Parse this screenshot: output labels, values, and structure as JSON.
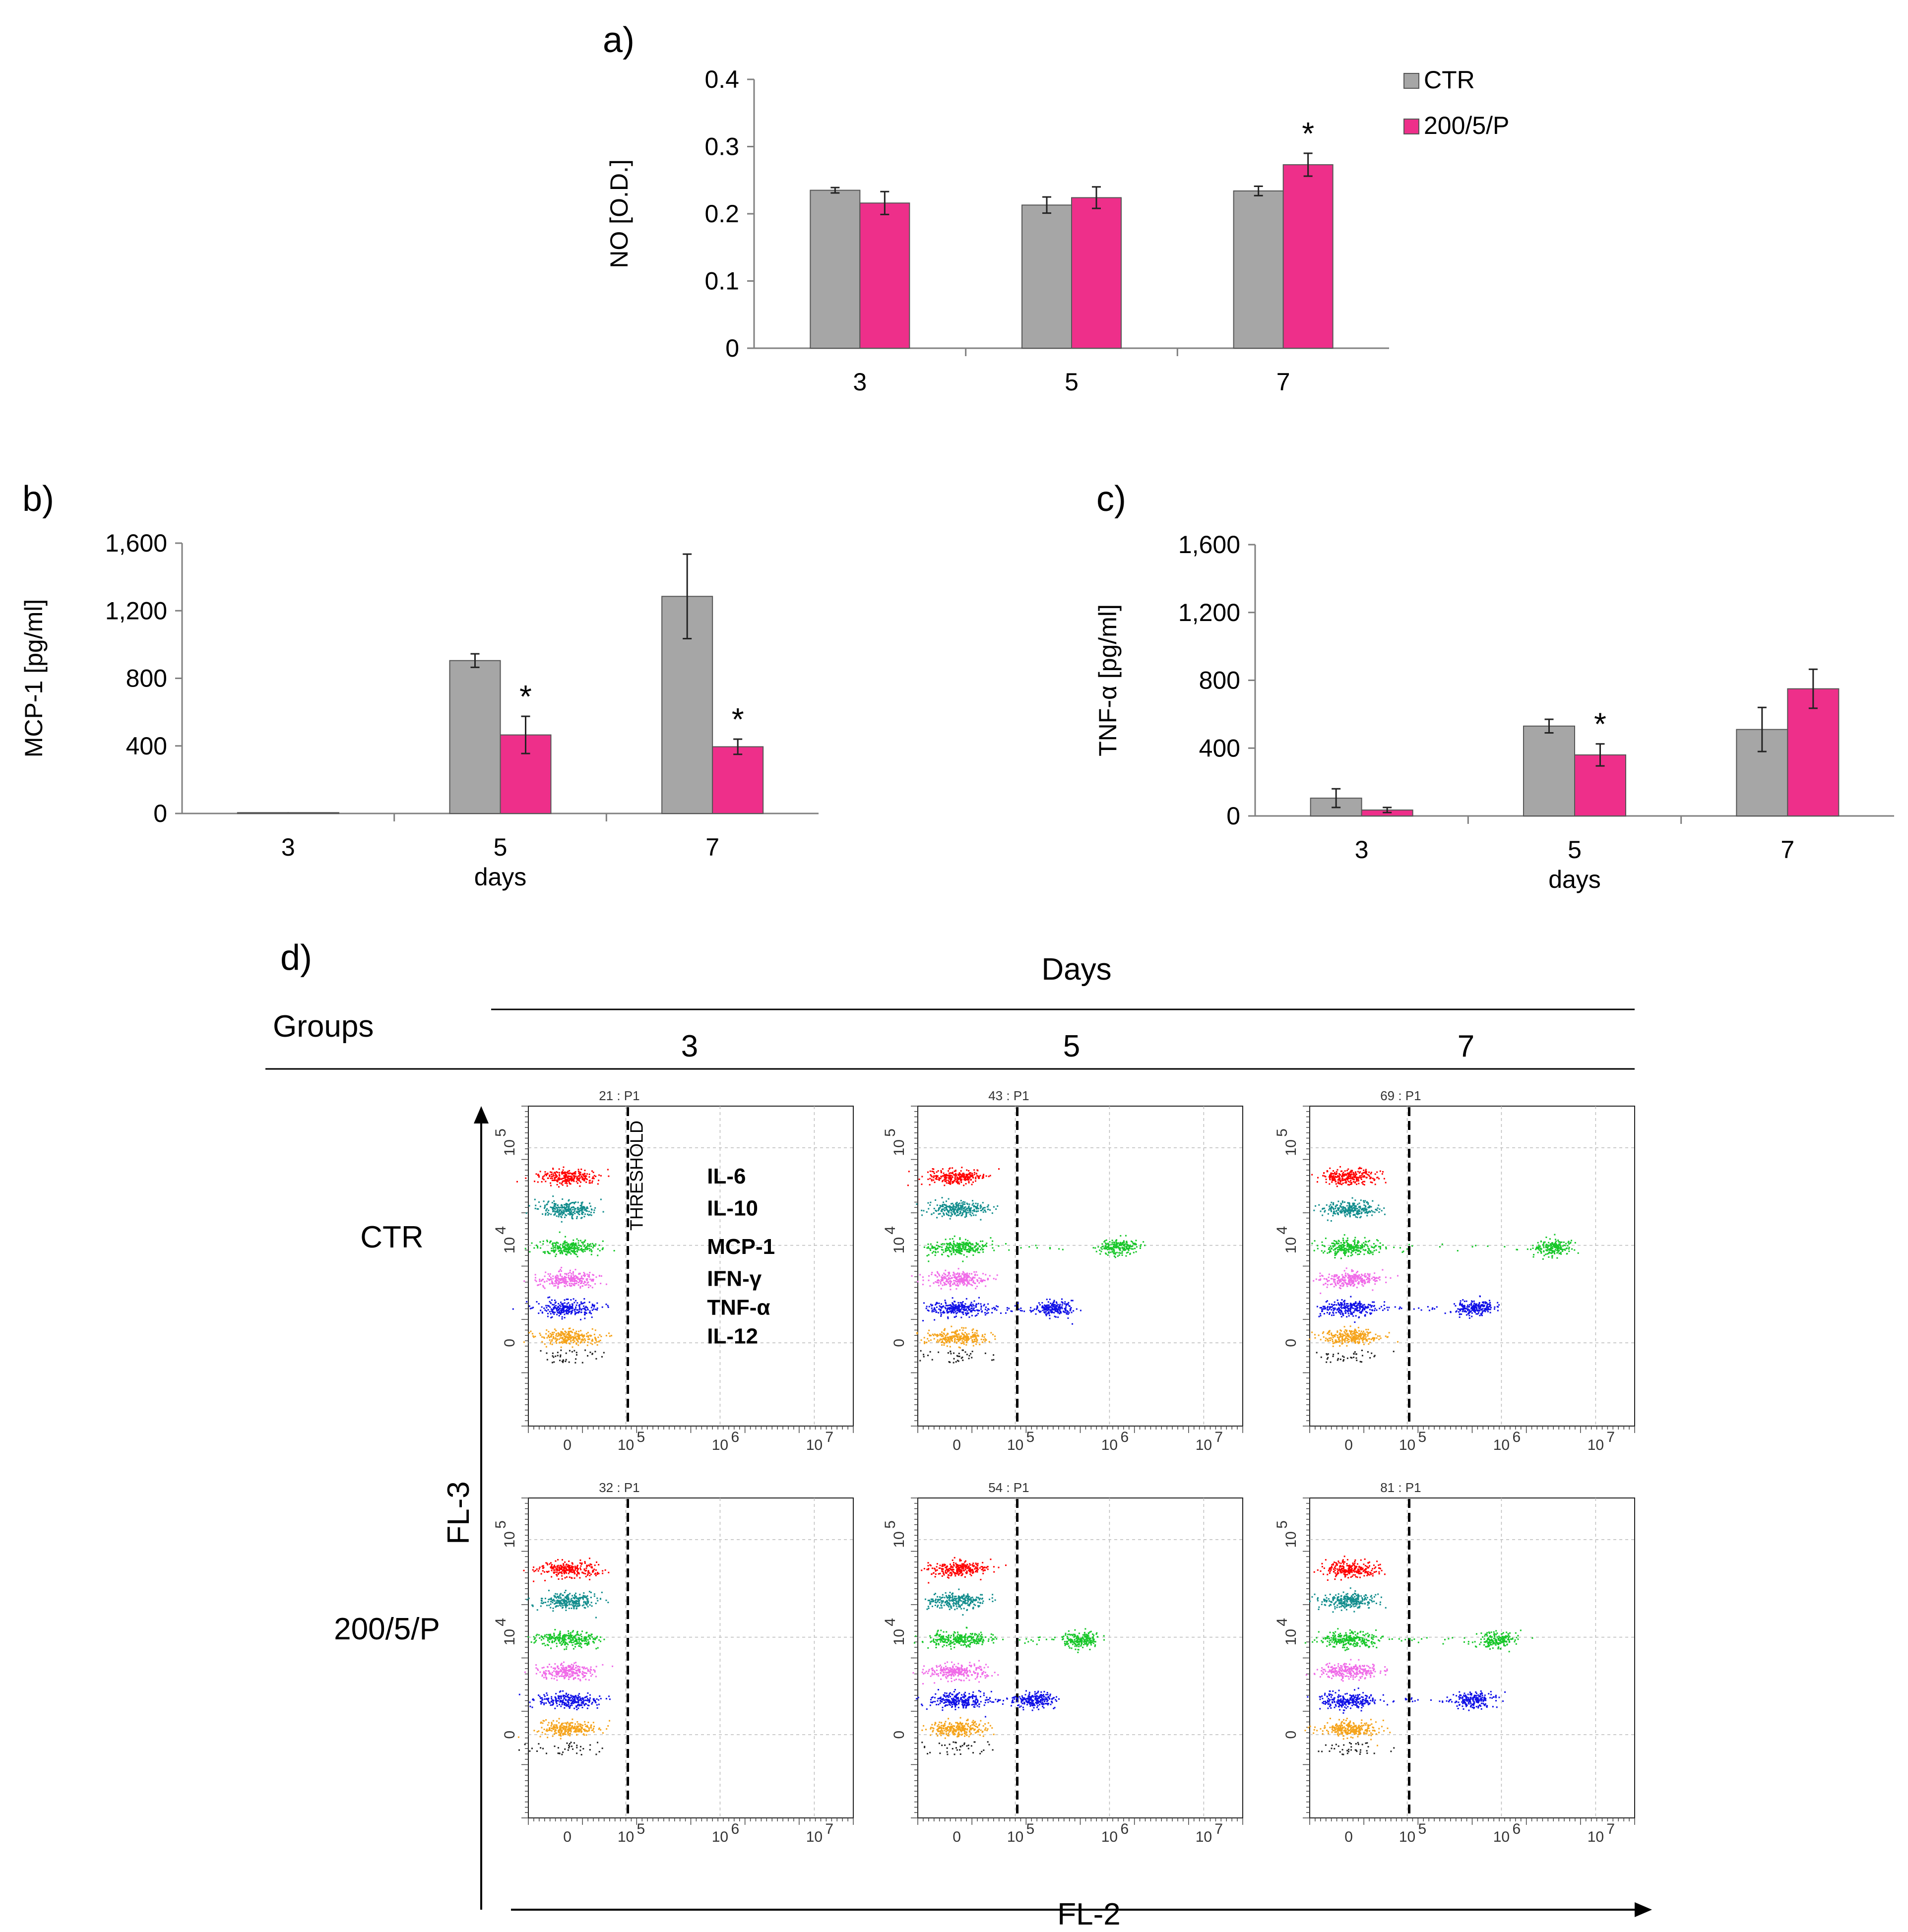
{
  "colors": {
    "ctr": "#a6a6a6",
    "treated": "#ee2f8a",
    "IL-6": "#ff0000",
    "IL-10": "#138d8d",
    "MCP-1": "#18c72a",
    "IFN-γ": "#f06be8",
    "TNF-α": "#1010e6",
    "IL-12": "#f5a31a"
  },
  "panels": {
    "a": {
      "label": "a)"
    },
    "b": {
      "label": "b)"
    },
    "c": {
      "label": "c)"
    },
    "d": {
      "label": "d)"
    }
  },
  "chart_data": [
    {
      "id": "a",
      "type": "bar",
      "title": "",
      "xlabel": "",
      "ylabel": "NO [O.D.]",
      "categories": [
        "3",
        "5",
        "7"
      ],
      "ylim": [
        0,
        0.4
      ],
      "yticks": [
        "0",
        "0.1",
        "0.2",
        "0.3",
        "0.4"
      ],
      "ytick_values": [
        0,
        0.1,
        0.2,
        0.3,
        0.4
      ],
      "series": [
        {
          "name": "CTR",
          "values": [
            0.235,
            0.213,
            0.234
          ],
          "errors": [
            0.004,
            0.012,
            0.007
          ]
        },
        {
          "name": "200/5/P",
          "values": [
            0.216,
            0.224,
            0.273
          ],
          "errors": [
            0.017,
            0.016,
            0.017
          ]
        }
      ],
      "significance": [
        null,
        null,
        "*"
      ],
      "legend": [
        "CTR",
        "200/5/P"
      ],
      "legend_position": "top-right"
    },
    {
      "id": "b",
      "type": "bar",
      "title": "",
      "xlabel": "days",
      "ylabel": "MCP-1 [pg/ml]",
      "categories": [
        "3",
        "5",
        "7"
      ],
      "ylim": [
        0,
        1600
      ],
      "yticks": [
        "0",
        "400",
        "800",
        "1,200",
        "1,600"
      ],
      "ytick_values": [
        0,
        400,
        800,
        1200,
        1600
      ],
      "series": [
        {
          "name": "CTR",
          "values": [
            5,
            905,
            1285
          ],
          "errors": [
            0,
            40,
            250
          ]
        },
        {
          "name": "200/5/P",
          "values": [
            5,
            465,
            395
          ],
          "errors": [
            0,
            110,
            45
          ]
        }
      ],
      "significance": [
        null,
        "*",
        "*"
      ]
    },
    {
      "id": "c",
      "type": "bar",
      "title": "",
      "xlabel": "days",
      "ylabel": "TNF-α [pg/ml]",
      "categories": [
        "3",
        "5",
        "7"
      ],
      "ylim": [
        0,
        1600
      ],
      "yticks": [
        "0",
        "400",
        "800",
        "1,200",
        "1,600"
      ],
      "ytick_values": [
        0,
        400,
        800,
        1200,
        1600
      ],
      "series": [
        {
          "name": "CTR",
          "values": [
            105,
            530,
            510
          ],
          "errors": [
            55,
            40,
            130
          ]
        },
        {
          "name": "200/5/P",
          "values": [
            35,
            360,
            750
          ],
          "errors": [
            15,
            65,
            115
          ]
        }
      ],
      "significance": [
        null,
        "*",
        null
      ]
    },
    {
      "id": "d",
      "type": "scatter",
      "title": "Days",
      "xlabel": "FL-2",
      "ylabel": "FL-3",
      "row_header": "Groups",
      "columns": [
        "3",
        "5",
        "7"
      ],
      "rows": [
        "CTR",
        "200/5/P"
      ],
      "plot_titles": [
        [
          "21 : P1",
          "43 : P1",
          "69 : P1"
        ],
        [
          "32 : P1",
          "54 : P1",
          "81 : P1"
        ]
      ],
      "x_ticks": [
        "0",
        "10",
        "10",
        "10"
      ],
      "x_tick_exponents": [
        "",
        "5",
        "6",
        "7"
      ],
      "y_ticks": [
        "0",
        "10",
        "10"
      ],
      "y_tick_exponents": [
        "",
        "4",
        "5"
      ],
      "threshold_label": "THRESHOLD",
      "analytes": [
        "IL-6",
        "IL-10",
        "MCP-1",
        "IFN-γ",
        "TNF-α",
        "IL-12"
      ],
      "positive_shift_log10": [
        [
          {},
          {
            "MCP-1": 6.1,
            "TNF-α": 5.4
          },
          {
            "MCP-1": 6.55,
            "TNF-α": 5.7
          }
        ],
        [
          {},
          {
            "MCP-1": 5.7,
            "TNF-α": 5.2
          },
          {
            "MCP-1": 5.95,
            "TNF-α": 5.7
          }
        ]
      ]
    }
  ]
}
